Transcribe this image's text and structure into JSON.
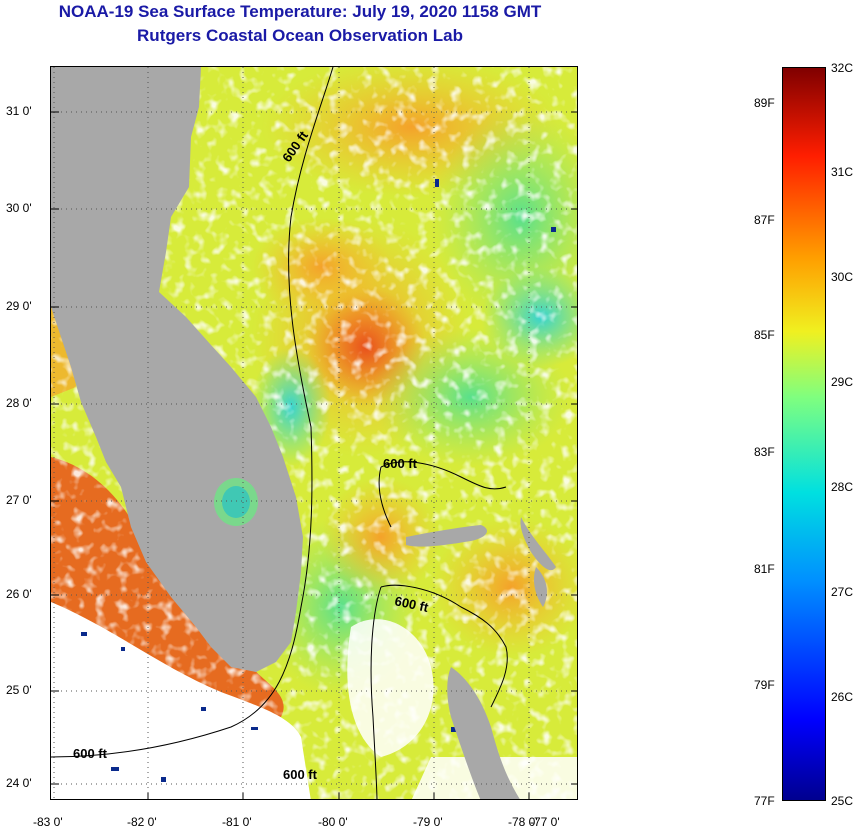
{
  "header": {
    "title": "NOAA-19 Sea Surface Temperature:  July 19, 2020 1158 GMT",
    "subtitle": "Rutgers Coastal Ocean Observation Lab"
  },
  "map": {
    "lat_ticks": [
      "31 0'",
      "30 0'",
      "29 0'",
      "28 0'",
      "27 0'",
      "26 0'",
      "25 0'",
      "24 0'"
    ],
    "lon_ticks": [
      "-83 0'",
      "-82 0'",
      "-81 0'",
      "-80 0'",
      "-79 0'",
      "-78 0'",
      "-77 0'"
    ],
    "contour_labels": [
      "600 ft",
      "600 ft",
      "600 ft",
      "600 ft",
      "600 ft"
    ],
    "land_color": "#a8a8a8",
    "missing_color": "#ffffff"
  },
  "colorbar": {
    "celsius": [
      "32C",
      "31C",
      "30C",
      "29C",
      "28C",
      "27C",
      "26C",
      "25C"
    ],
    "fahrenheit": [
      "89F",
      "87F",
      "85F",
      "83F",
      "81F",
      "79F",
      "77F"
    ],
    "range_c": [
      25,
      32
    ]
  }
}
